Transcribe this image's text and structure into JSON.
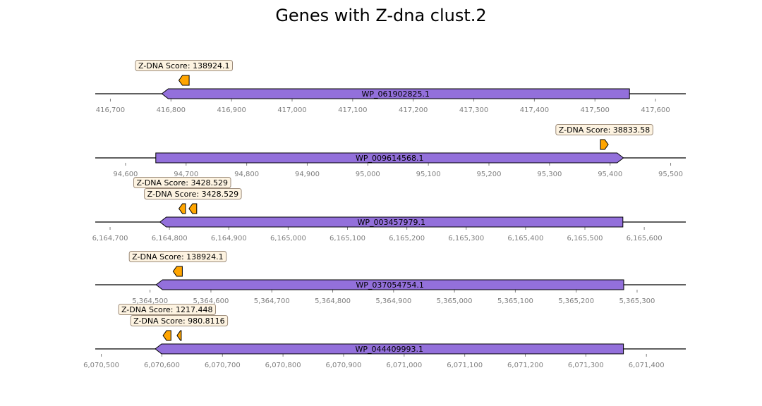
{
  "chart_data": {
    "type": "gene_tracks",
    "title": "Genes with Z-dna clust.2",
    "colors": {
      "gene": "#9370db",
      "zdna": "#ffa500",
      "baseline": "#000000",
      "tick": "#808080",
      "label_bg": "#fdf3e1",
      "label_border": "#9c8b7a"
    },
    "tracks": [
      {
        "xlim": [
          416675,
          417650
        ],
        "ticks": [
          416700,
          416800,
          416900,
          417000,
          417100,
          417200,
          417300,
          417400,
          417500,
          417600
        ],
        "tick_labels": [
          "416,700",
          "416,800",
          "416,900",
          "417,000",
          "417,100",
          "417,200",
          "417,300",
          "417,400",
          "417,500",
          "417,600"
        ],
        "gene": {
          "name": "WP_061902825.1",
          "start": 416785,
          "end": 417557,
          "strand": "-"
        },
        "zdna": [
          {
            "start": 416813,
            "end": 416830,
            "strand": "-",
            "label": "Z-DNA Score: 138924.1"
          }
        ]
      },
      {
        "xlim": [
          94550,
          95525
        ],
        "ticks": [
          94600,
          94700,
          94800,
          94900,
          95000,
          95100,
          95200,
          95300,
          95400,
          95500
        ],
        "tick_labels": [
          "94,600",
          "94,700",
          "94,800",
          "94,900",
          "95,000",
          "95,100",
          "95,200",
          "95,300",
          "95,400",
          "95,500"
        ],
        "gene": {
          "name": "WP_009614568.1",
          "start": 94650,
          "end": 95422,
          "strand": "+"
        },
        "zdna": [
          {
            "start": 95384,
            "end": 95397,
            "strand": "+",
            "label": "Z-DNA Score: 38833.58"
          }
        ]
      },
      {
        "xlim": [
          6164675,
          6165670
        ],
        "ticks": [
          6164700,
          6164800,
          6164900,
          6165000,
          6165100,
          6165200,
          6165300,
          6165400,
          6165500,
          6165600
        ],
        "tick_labels": [
          "6,164,700",
          "6,164,800",
          "6,164,900",
          "6,165,000",
          "6,165,100",
          "6,165,200",
          "6,165,300",
          "6,165,400",
          "6,165,500",
          "6,165,600"
        ],
        "gene": {
          "name": "WP_003457979.1",
          "start": 6164784,
          "end": 6165564,
          "strand": "-"
        },
        "zdna": [
          {
            "start": 6164816,
            "end": 6164827,
            "strand": "-",
            "label": "Z-DNA Score: 3428.529"
          },
          {
            "start": 6164833,
            "end": 6164846,
            "strand": "-",
            "label": "Z-DNA Score: 3428.529"
          }
        ]
      },
      {
        "xlim": [
          5364410,
          5365380
        ],
        "ticks": [
          5364500,
          5364600,
          5364700,
          5364800,
          5364900,
          5365000,
          5365100,
          5365200,
          5365300
        ],
        "tick_labels": [
          "5,364,500",
          "5,364,600",
          "5,364,700",
          "5,364,800",
          "5,364,900",
          "5,365,000",
          "5,365,100",
          "5,365,200",
          "5,365,300"
        ],
        "gene": {
          "name": "WP_037054754.1",
          "start": 5364510,
          "end": 5365278,
          "strand": "-"
        },
        "zdna": [
          {
            "start": 5364538,
            "end": 5364553,
            "strand": "-",
            "label": "Z-DNA Score: 138924.1"
          }
        ]
      },
      {
        "xlim": [
          6070490,
          6071465
        ],
        "ticks": [
          6070500,
          6070600,
          6070700,
          6070800,
          6070900,
          6071000,
          6071100,
          6071200,
          6071300,
          6071400
        ],
        "tick_labels": [
          "6,070,500",
          "6,070,600",
          "6,070,700",
          "6,070,800",
          "6,070,900",
          "6,071,000",
          "6,071,100",
          "6,071,200",
          "6,071,300",
          "6,071,400"
        ],
        "gene": {
          "name": "WP_044409993.1",
          "start": 6070589,
          "end": 6071362,
          "strand": "-"
        },
        "zdna": [
          {
            "start": 6070602,
            "end": 6070615,
            "strand": "-",
            "label": "Z-DNA Score: 1217.448"
          },
          {
            "start": 6070625,
            "end": 6070632,
            "strand": "-",
            "label": "Z-DNA Score: 980.8116"
          }
        ]
      }
    ]
  }
}
